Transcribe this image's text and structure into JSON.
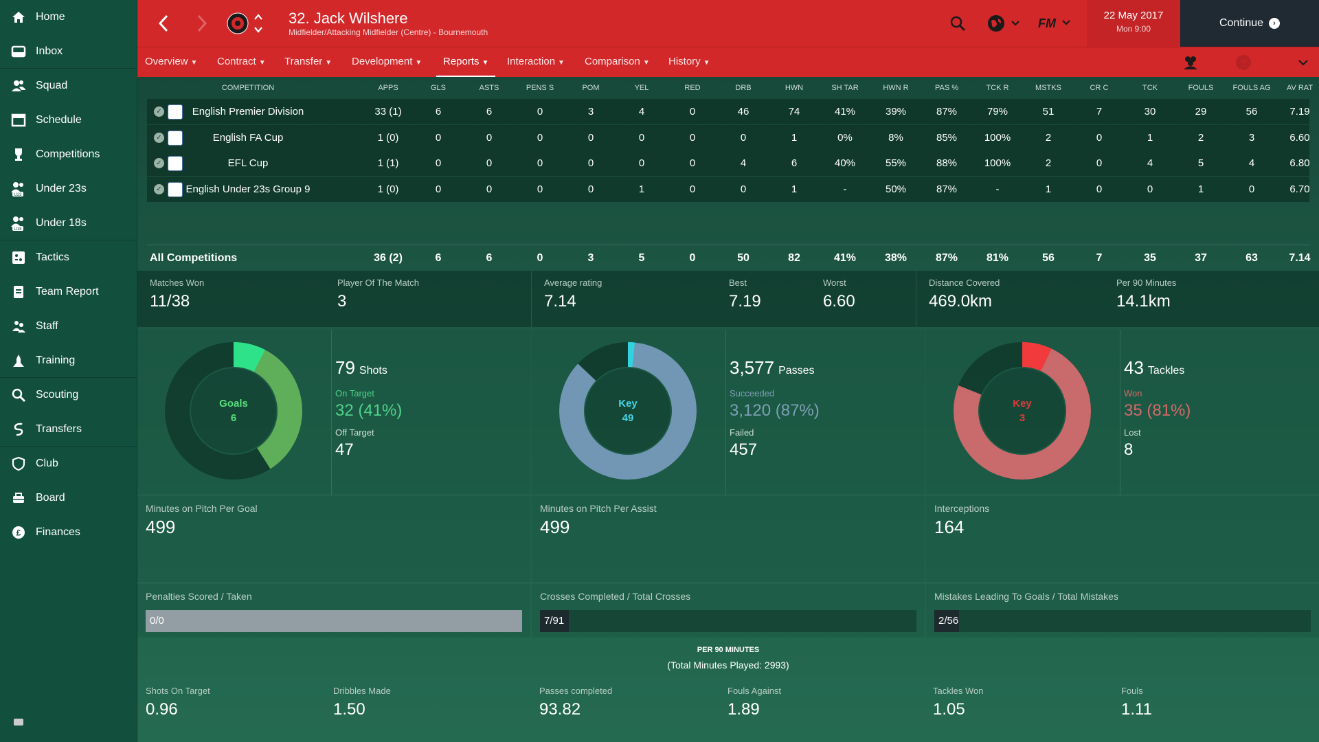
{
  "sidebar": {
    "items": [
      {
        "label": "Home",
        "icon": "home-icon"
      },
      {
        "label": "Inbox",
        "icon": "inbox-icon"
      },
      {
        "label": "Squad",
        "icon": "squad-icon"
      },
      {
        "label": "Schedule",
        "icon": "schedule-icon"
      },
      {
        "label": "Competitions",
        "icon": "trophy-icon"
      },
      {
        "label": "Under 23s",
        "icon": "u23-icon"
      },
      {
        "label": "Under 18s",
        "icon": "u18-icon"
      },
      {
        "label": "Tactics",
        "icon": "tactics-icon"
      },
      {
        "label": "Team Report",
        "icon": "report-icon"
      },
      {
        "label": "Staff",
        "icon": "staff-icon"
      },
      {
        "label": "Training",
        "icon": "training-icon"
      },
      {
        "label": "Scouting",
        "icon": "search-icon"
      },
      {
        "label": "Transfers",
        "icon": "transfers-icon"
      },
      {
        "label": "Club",
        "icon": "club-icon"
      },
      {
        "label": "Board",
        "icon": "board-icon"
      },
      {
        "label": "Finances",
        "icon": "finances-icon"
      }
    ]
  },
  "header": {
    "title": "32. Jack Wilshere",
    "subtitle": "Midfielder/Attacking Midfielder (Centre) - Bournemouth",
    "fm_label": "FM",
    "date": "22 May 2017",
    "time": "Mon 9:00",
    "continue_label": "Continue"
  },
  "tabs": [
    {
      "label": "Overview"
    },
    {
      "label": "Contract"
    },
    {
      "label": "Transfer"
    },
    {
      "label": "Development"
    },
    {
      "label": "Reports",
      "active": true
    },
    {
      "label": "Interaction"
    },
    {
      "label": "Comparison"
    },
    {
      "label": "History"
    }
  ],
  "table": {
    "columns": [
      "COMPETITION",
      "APPS",
      "GLS",
      "ASTS",
      "PENS S",
      "POM",
      "YEL",
      "RED",
      "DRB",
      "HWN",
      "SH TAR",
      "HWN R",
      "PAS %",
      "TCK R",
      "MSTKS",
      "CR C",
      "TCK",
      "FOULS",
      "FOULS AG",
      "AV RAT"
    ],
    "rows": [
      [
        "English Premier Division",
        "33 (1)",
        "6",
        "6",
        "0",
        "3",
        "4",
        "0",
        "46",
        "74",
        "41%",
        "39%",
        "87%",
        "79%",
        "51",
        "7",
        "30",
        "29",
        "56",
        "7.19"
      ],
      [
        "English FA Cup",
        "1 (0)",
        "0",
        "0",
        "0",
        "0",
        "0",
        "0",
        "0",
        "1",
        "0%",
        "8%",
        "85%",
        "100%",
        "2",
        "0",
        "1",
        "2",
        "3",
        "6.60"
      ],
      [
        "EFL Cup",
        "1 (1)",
        "0",
        "0",
        "0",
        "0",
        "0",
        "0",
        "4",
        "6",
        "40%",
        "55%",
        "88%",
        "100%",
        "2",
        "0",
        "4",
        "5",
        "4",
        "6.80"
      ],
      [
        "English Under 23s Group 9",
        "1 (0)",
        "0",
        "0",
        "0",
        "0",
        "1",
        "0",
        "0",
        "1",
        "-",
        "50%",
        "87%",
        "-",
        "1",
        "0",
        "0",
        "1",
        "0",
        "6.70"
      ]
    ],
    "total": [
      "All Competitions",
      "36 (2)",
      "6",
      "6",
      "0",
      "3",
      "5",
      "0",
      "50",
      "82",
      "41%",
      "38%",
      "87%",
      "81%",
      "56",
      "7",
      "35",
      "37",
      "63",
      "7.14"
    ]
  },
  "summary": [
    {
      "label": "Matches Won",
      "value": "11/38"
    },
    {
      "label": "Player Of The Match",
      "value": "3"
    },
    {
      "label": "Average rating",
      "value": "7.14"
    },
    {
      "label": "Best",
      "value": "7.19"
    },
    {
      "label": "Worst",
      "value": "6.60"
    },
    {
      "label": "Distance Covered",
      "value": "469.0km"
    },
    {
      "label": "Per 90 Minutes",
      "value": "14.1km"
    }
  ],
  "panels": [
    {
      "center_label": "Goals",
      "center_value": "6",
      "main_value": "79",
      "main_label": "Shots",
      "sub1_label": "On Target",
      "sub1_value": "32 (41%)",
      "sub2_label": "Off Target",
      "sub2_value": "47",
      "fraction": 0.41,
      "highlight_fraction": 0.076,
      "ring_color": "#5fae5a",
      "highlight_color": "#2ee28a",
      "sub1_color": "#4fd18a",
      "center_color": "#58e07a",
      "mid_label": "Minutes on Pitch Per Goal",
      "mid_value": "499",
      "bar_label": "Penalties Scored / Taken",
      "bar_text": "0/0",
      "bar_fraction": 1.0
    },
    {
      "center_label": "Key",
      "center_value": "49",
      "main_value": "3,577",
      "main_label": "Passes",
      "sub1_label": "Succeeded",
      "sub1_value": "3,120 (87%)",
      "sub2_label": "Failed",
      "sub2_value": "457",
      "fraction": 0.87,
      "highlight_fraction": 0.016,
      "ring_color": "#7197b5",
      "highlight_color": "#2fd4e0",
      "sub1_color": "#7d9fb3",
      "center_color": "#44d4e6",
      "mid_label": "Minutes on Pitch Per Assist",
      "mid_value": "499",
      "bar_label": "Crosses Completed / Total Crosses",
      "bar_text": "7/91",
      "bar_fraction": 0.077
    },
    {
      "center_label": "Key",
      "center_value": "3",
      "main_value": "43",
      "main_label": "Tackles",
      "sub1_label": "Won",
      "sub1_value": "35 (81%)",
      "sub2_label": "Lost",
      "sub2_value": "8",
      "fraction": 0.81,
      "highlight_fraction": 0.07,
      "ring_color": "#c96a6c",
      "highlight_color": "#f03a3c",
      "sub1_color": "#d46a6a",
      "center_color": "#e23a3a",
      "mid_label": "Interceptions",
      "mid_value": "164",
      "bar_label": "Mistakes Leading To Goals / Total Mistakes",
      "bar_text": "2/56",
      "bar_fraction": 0.036
    }
  ],
  "per90": {
    "title": "PER 90 MINUTES",
    "subtitle": "(Total Minutes Played: 2993)",
    "items": [
      {
        "label": "Shots On Target",
        "value": "0.96"
      },
      {
        "label": "Dribbles Made",
        "value": "1.50"
      },
      {
        "label": "Passes completed",
        "value": "93.82"
      },
      {
        "label": "Fouls Against",
        "value": "1.89"
      },
      {
        "label": "Tackles Won",
        "value": "1.05"
      },
      {
        "label": "Fouls",
        "value": "1.11"
      }
    ]
  }
}
